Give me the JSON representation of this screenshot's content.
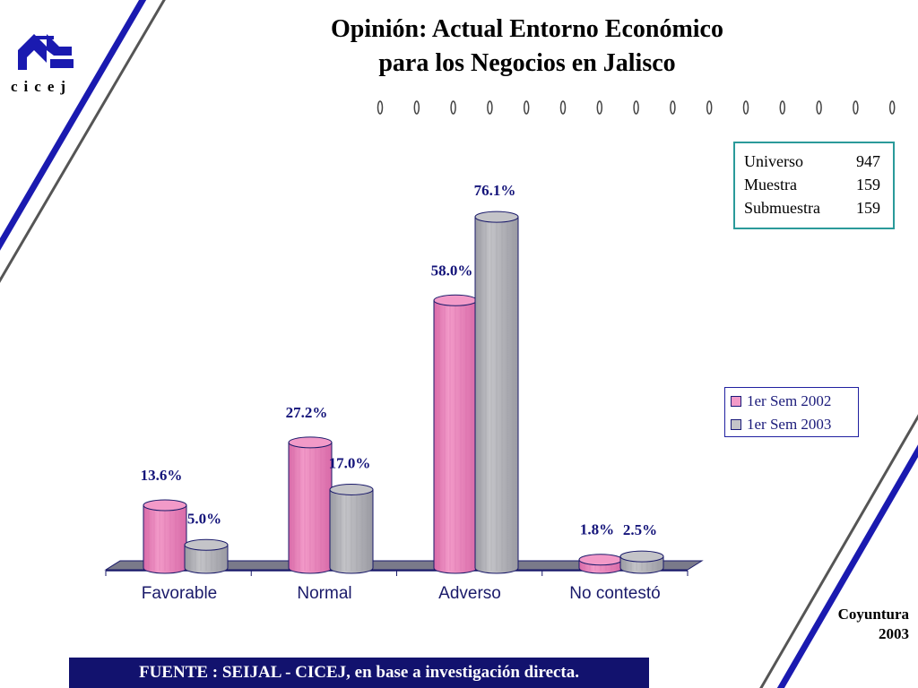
{
  "logo": {
    "text": "cicej"
  },
  "title": {
    "line1": "Opinión: Actual Entorno Económico",
    "line2": "para los Negocios en Jalisco"
  },
  "stats": [
    {
      "label": "Universo",
      "value": "947"
    },
    {
      "label": "Muestra",
      "value": "159"
    },
    {
      "label": "Submuestra",
      "value": "159"
    }
  ],
  "footer": {
    "source": "FUENTE :  SEIJAL - CICEJ,  en base a investigación directa."
  },
  "coyuntura": {
    "line1": "Coyuntura",
    "line2": "2003"
  },
  "colors": {
    "series1": "#f29ac8",
    "series2": "#c4c4c8",
    "navy": "#12126e",
    "diagonal_blue": "#1a1ab0",
    "diagonal_gray": "#555555",
    "stats_border": "#2a9a9a"
  },
  "chart_data": {
    "type": "bar",
    "title": "Opinión: Actual Entorno Económico para los Negocios en Jalisco",
    "categories": [
      "Favorable",
      "Normal",
      "Adverso",
      "No contestó"
    ],
    "series": [
      {
        "name": "1er Sem 2002",
        "values": [
          13.6,
          27.2,
          58.0,
          1.8
        ],
        "labels": [
          "13.6%",
          "27.2%",
          "58.0%",
          "1.8%"
        ]
      },
      {
        "name": "1er Sem 2003",
        "values": [
          5.0,
          17.0,
          76.1,
          2.5
        ],
        "labels": [
          "5.0%",
          "17.0%",
          "76.1%",
          "2.5%"
        ]
      }
    ],
    "ylim": [
      0,
      80
    ],
    "style": "3d-cylinder",
    "legend": "right"
  }
}
